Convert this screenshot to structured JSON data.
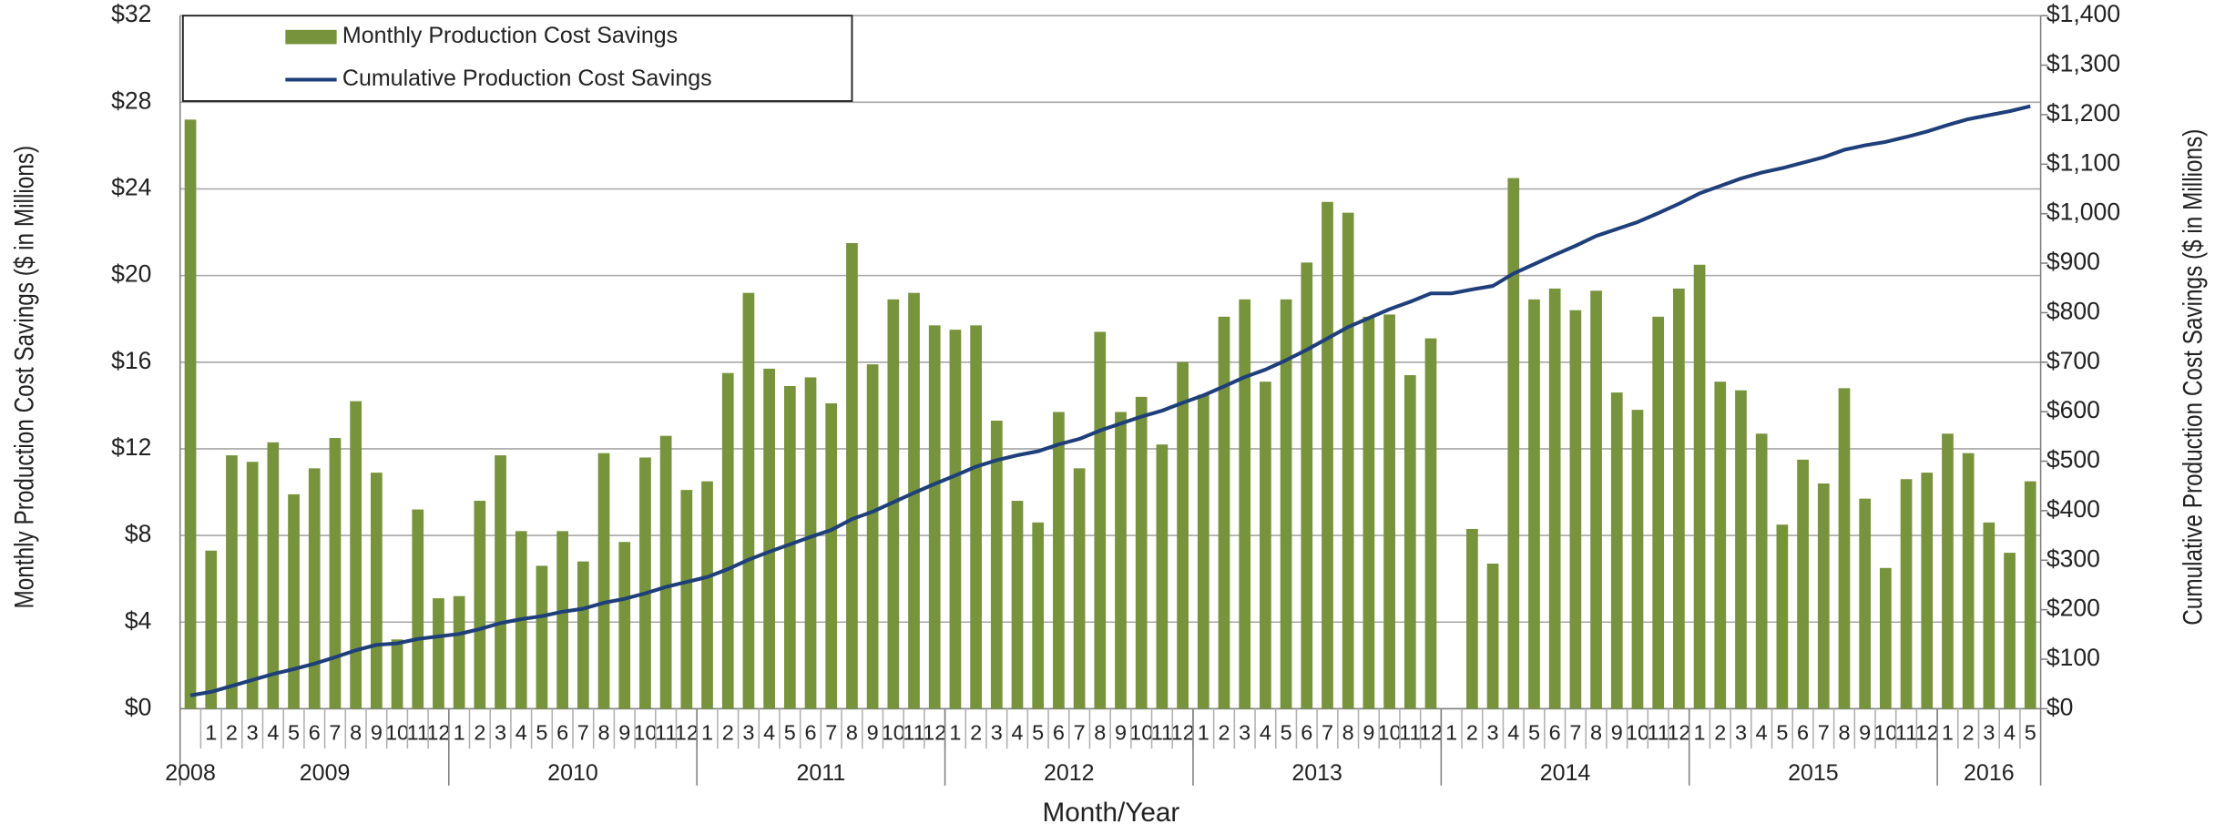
{
  "chart_data": {
    "type": "bar",
    "x_title": "Month/Year",
    "y_title": "Monthly Production Cost Savings ($ in Millions)",
    "y2_title": "Cumulative Production Cost Savings ($ in Millions)",
    "legend": "upper left",
    "grid": true,
    "categories": [
      null,
      "1",
      "2",
      "3",
      "4",
      "5",
      "6",
      "7",
      "8",
      "9",
      "10",
      "11",
      "12",
      "1",
      "2",
      "3",
      "4",
      "5",
      "6",
      "7",
      "8",
      "9",
      "10",
      "11",
      "12",
      "1",
      "2",
      "3",
      "4",
      "5",
      "6",
      "7",
      "8",
      "9",
      "10",
      "11",
      "12",
      "1",
      "2",
      "3",
      "4",
      "5",
      "6",
      "7",
      "8",
      "9",
      "10",
      "11",
      "12",
      "1",
      "2",
      "3",
      "4",
      "5",
      "6",
      "7",
      "8",
      "9",
      "10",
      "11",
      "12",
      "1",
      "2",
      "3",
      "4",
      "5",
      "6",
      "7",
      "8",
      "9",
      "10",
      "11",
      "12",
      "1",
      "2",
      "3",
      "4",
      "5",
      "6",
      "7",
      "8",
      "9",
      "10",
      "11",
      "12",
      "1",
      "2",
      "3",
      "4",
      "5"
    ],
    "x_groups": [
      {
        "label": "2008",
        "span": 1
      },
      {
        "label": "2009",
        "span": 12
      },
      {
        "label": "2010",
        "span": 12
      },
      {
        "label": "2011",
        "span": 12
      },
      {
        "label": "2012",
        "span": 12
      },
      {
        "label": "2013",
        "span": 12
      },
      {
        "label": "2014",
        "span": 12
      },
      {
        "label": "2015",
        "span": 12
      },
      {
        "label": "2016",
        "span": 5
      }
    ],
    "series": [
      {
        "name": "Monthly Production Cost Savings",
        "type": "bar",
        "color": "#77933c",
        "values": [
          27.2,
          7.3,
          11.7,
          11.4,
          12.3,
          9.9,
          11.1,
          12.5,
          14.2,
          10.9,
          3.2,
          9.2,
          5.1,
          5.2,
          9.6,
          11.7,
          8.2,
          6.6,
          8.2,
          6.8,
          11.8,
          7.7,
          11.6,
          12.6,
          10.1,
          10.5,
          15.5,
          19.2,
          15.7,
          14.9,
          15.3,
          14.1,
          21.5,
          15.9,
          18.9,
          19.2,
          17.7,
          17.5,
          17.7,
          13.3,
          9.6,
          8.6,
          13.7,
          11.1,
          17.4,
          13.7,
          14.4,
          12.2,
          16.0,
          14.5,
          18.1,
          18.9,
          15.1,
          18.9,
          20.6,
          23.4,
          22.9,
          18.1,
          18.2,
          15.4,
          17.1,
          null,
          8.3,
          6.7,
          24.5,
          18.9,
          19.4,
          18.4,
          19.3,
          14.6,
          13.8,
          18.1,
          19.4,
          20.5,
          15.1,
          14.7,
          12.7,
          8.5,
          11.5,
          10.4,
          14.8,
          9.7,
          6.5,
          10.6,
          10.9,
          12.7,
          11.8,
          8.6,
          7.2,
          10.5
        ]
      },
      {
        "name": "Cumulative Production Cost Savings",
        "type": "line",
        "axis": "y2",
        "color": "#1f3f7a",
        "values": [
          27,
          34,
          46,
          58,
          70,
          80,
          91,
          104,
          118,
          129,
          132,
          141,
          146,
          151,
          161,
          173,
          181,
          187,
          196,
          202,
          214,
          222,
          233,
          246,
          256,
          266,
          282,
          301,
          317,
          332,
          347,
          361,
          383,
          398,
          417,
          436,
          454,
          471,
          489,
          502,
          512,
          520,
          534,
          545,
          562,
          576,
          590,
          602,
          618,
          633,
          651,
          670,
          685,
          704,
          725,
          748,
          771,
          789,
          807,
          822,
          839,
          839,
          847,
          854,
          879,
          898,
          917,
          935,
          955,
          969,
          983,
          1001,
          1020,
          1041,
          1056,
          1071,
          1083,
          1092,
          1103,
          1114,
          1129,
          1138,
          1145,
          1155,
          1166,
          1179,
          1191,
          1199,
          1207,
          1217
        ]
      }
    ],
    "ylim": [
      0,
      32
    ],
    "yticks": [
      {
        "value": 0,
        "label": "$0"
      },
      {
        "value": 4,
        "label": "$4"
      },
      {
        "value": 8,
        "label": "$8"
      },
      {
        "value": 12,
        "label": "$12"
      },
      {
        "value": 16,
        "label": "$16"
      },
      {
        "value": 20,
        "label": "$20"
      },
      {
        "value": 24,
        "label": "$24"
      },
      {
        "value": 28,
        "label": "$28"
      },
      {
        "value": 32,
        "label": "$32"
      }
    ],
    "y2lim": [
      0,
      1400
    ],
    "y2ticks": [
      {
        "value": 0,
        "label": "$0"
      },
      {
        "value": 100,
        "label": "$100"
      },
      {
        "value": 200,
        "label": "$200"
      },
      {
        "value": 300,
        "label": "$300"
      },
      {
        "value": 400,
        "label": "$400"
      },
      {
        "value": 500,
        "label": "$500"
      },
      {
        "value": 600,
        "label": "$600"
      },
      {
        "value": 700,
        "label": "$700"
      },
      {
        "value": 800,
        "label": "$800"
      },
      {
        "value": 900,
        "label": "$900"
      },
      {
        "value": 1000,
        "label": "$1,000"
      },
      {
        "value": 1100,
        "label": "$1,100"
      },
      {
        "value": 1200,
        "label": "$1,200"
      },
      {
        "value": 1300,
        "label": "$1,300"
      },
      {
        "value": 1400,
        "label": "$1,400"
      }
    ]
  }
}
